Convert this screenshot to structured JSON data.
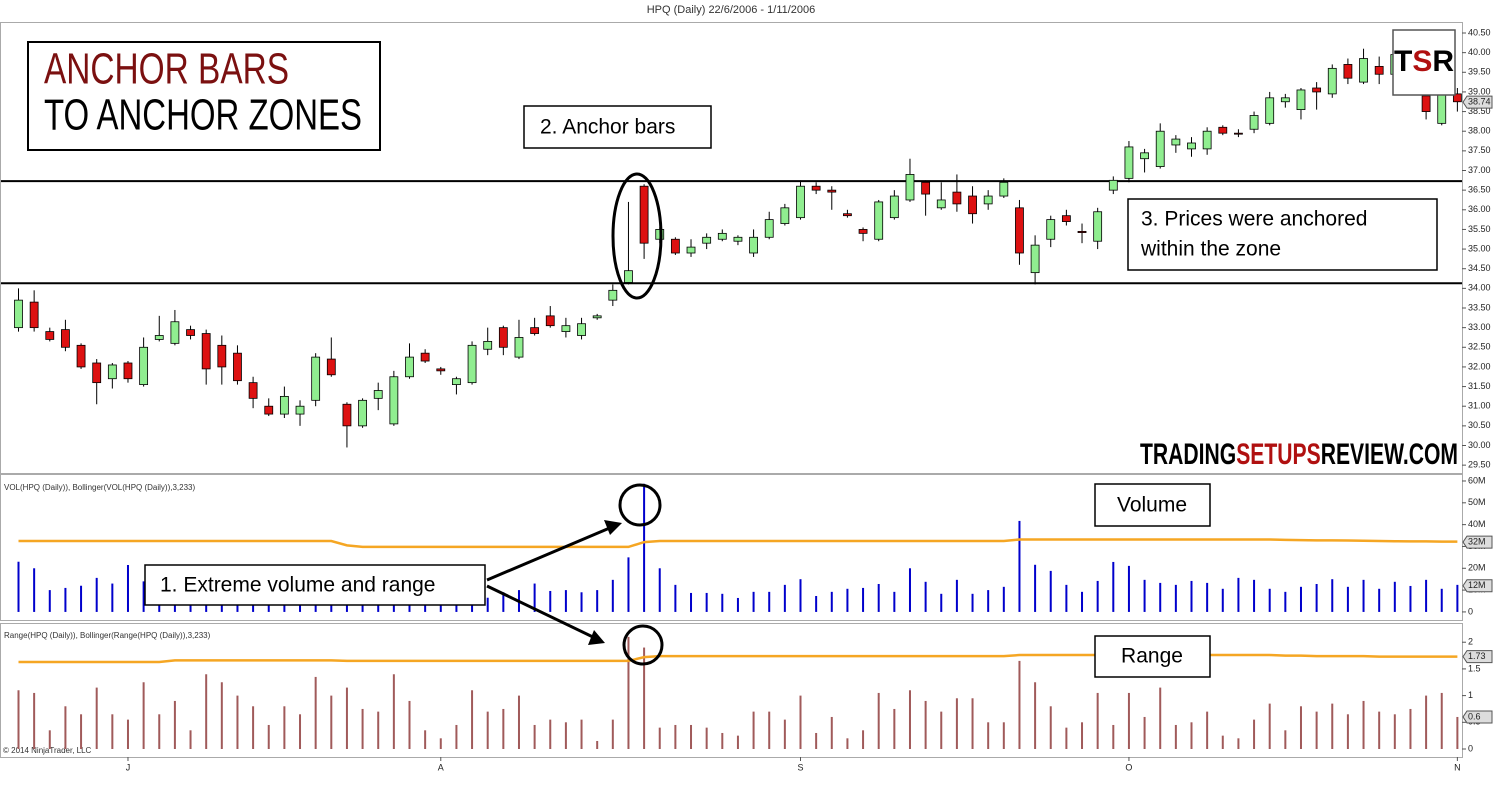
{
  "chart_data": [
    {
      "type": "candlestick",
      "title": "HPQ (Daily)  22/6/2006 - 1/11/2006",
      "categories": [
        null,
        null,
        null,
        null,
        null,
        null,
        null,
        "J",
        null,
        null,
        null,
        null,
        null,
        null,
        null,
        null,
        null,
        null,
        null,
        null,
        null,
        null,
        null,
        null,
        null,
        null,
        null,
        "A",
        null,
        null,
        null,
        null,
        null,
        null,
        null,
        null,
        null,
        null,
        null,
        null,
        null,
        null,
        null,
        null,
        null,
        null,
        null,
        null,
        null,
        null,
        "S",
        null,
        null,
        null,
        null,
        null,
        null,
        null,
        null,
        null,
        null,
        null,
        null,
        null,
        null,
        null,
        null,
        null,
        null,
        null,
        null,
        "O",
        null,
        null,
        null,
        null,
        null,
        null,
        null,
        null,
        null,
        null,
        null,
        null,
        null,
        null,
        null,
        null,
        null,
        null,
        null,
        null,
        "N"
      ],
      "open": [
        33.0,
        33.65,
        32.9,
        32.95,
        32.55,
        32.1,
        31.7,
        32.1,
        31.55,
        32.7,
        32.6,
        32.95,
        32.85,
        32.55,
        32.35,
        31.6,
        31.0,
        30.8,
        30.8,
        31.15,
        32.2,
        31.05,
        30.5,
        31.2,
        30.55,
        31.75,
        32.35,
        31.95,
        31.55,
        31.6,
        32.45,
        33.0,
        32.25,
        33.0,
        33.3,
        32.9,
        32.8,
        33.25,
        33.7,
        34.15,
        36.6,
        35.25,
        35.25,
        34.9,
        35.15,
        35.25,
        35.2,
        34.9,
        35.3,
        35.65,
        35.8,
        36.6,
        36.5,
        35.9,
        35.5,
        35.25,
        35.8,
        36.25,
        36.7,
        36.05,
        36.45,
        36.35,
        36.15,
        36.35,
        36.05,
        34.4,
        35.25,
        35.85,
        35.45,
        35.2,
        36.5,
        36.8,
        37.3,
        37.1,
        37.65,
        37.55,
        37.55,
        38.1,
        37.95,
        38.05,
        38.2,
        38.75,
        38.55,
        39.1,
        38.95,
        39.7,
        39.25,
        39.65,
        39.45,
        39.9,
        38.9,
        38.2,
        38.95
      ],
      "high": [
        34.0,
        33.95,
        33.0,
        33.2,
        32.6,
        32.2,
        32.1,
        32.15,
        32.75,
        33.3,
        33.45,
        33.05,
        32.95,
        32.8,
        32.55,
        31.75,
        31.2,
        31.5,
        31.15,
        32.35,
        32.75,
        31.1,
        31.2,
        31.6,
        31.9,
        32.6,
        32.45,
        32.0,
        31.75,
        32.65,
        33.0,
        33.05,
        33.2,
        33.25,
        33.55,
        33.25,
        33.25,
        33.35,
        34.1,
        36.2,
        36.65,
        35.55,
        35.3,
        35.25,
        35.4,
        35.5,
        35.35,
        35.5,
        35.95,
        36.15,
        36.75,
        36.7,
        36.6,
        36.0,
        35.55,
        36.25,
        36.5,
        37.3,
        36.75,
        36.7,
        36.9,
        36.6,
        36.5,
        36.8,
        36.25,
        35.35,
        35.85,
        36.0,
        35.65,
        36.05,
        36.85,
        37.75,
        37.55,
        38.2,
        37.9,
        37.85,
        38.1,
        38.15,
        38.05,
        38.5,
        39.0,
        38.95,
        39.1,
        39.25,
        39.7,
        39.85,
        40.1,
        39.9,
        40.0,
        40.05,
        39.3,
        39.2,
        39.1
      ],
      "low": [
        32.9,
        32.9,
        32.65,
        32.4,
        31.95,
        31.05,
        31.45,
        31.6,
        31.5,
        32.65,
        32.55,
        32.7,
        31.55,
        31.55,
        31.55,
        30.95,
        30.75,
        30.7,
        30.5,
        31.0,
        31.75,
        29.95,
        30.45,
        30.9,
        30.5,
        31.7,
        32.1,
        31.8,
        31.3,
        31.55,
        32.3,
        32.3,
        32.2,
        32.8,
        33.0,
        32.75,
        32.7,
        33.2,
        33.55,
        34.1,
        34.75,
        35.15,
        34.85,
        34.8,
        35.0,
        35.2,
        35.1,
        34.8,
        35.25,
        35.6,
        35.75,
        36.4,
        36.0,
        35.8,
        35.2,
        35.2,
        35.75,
        36.2,
        35.85,
        36.0,
        35.95,
        35.65,
        36.0,
        36.3,
        34.6,
        34.1,
        35.05,
        35.6,
        35.15,
        35.0,
        36.4,
        36.7,
        36.95,
        37.05,
        37.45,
        37.35,
        37.4,
        37.9,
        37.85,
        37.95,
        38.15,
        38.6,
        38.3,
        38.55,
        38.85,
        39.2,
        39.2,
        39.2,
        39.35,
        39.3,
        38.3,
        38.15,
        38.5
      ],
      "close": [
        33.7,
        33.0,
        32.7,
        32.5,
        32.0,
        31.6,
        32.05,
        31.7,
        32.5,
        32.8,
        33.15,
        32.8,
        31.95,
        32.0,
        31.65,
        31.2,
        30.8,
        31.25,
        31.0,
        32.25,
        31.8,
        30.5,
        31.15,
        31.4,
        31.75,
        32.25,
        32.15,
        31.9,
        31.7,
        32.55,
        32.65,
        32.5,
        32.75,
        32.85,
        33.05,
        33.05,
        33.1,
        33.3,
        33.95,
        34.45,
        35.15,
        35.5,
        34.9,
        35.05,
        35.3,
        35.4,
        35.3,
        35.3,
        35.75,
        36.05,
        36.6,
        36.5,
        36.45,
        35.85,
        35.4,
        36.2,
        36.35,
        36.9,
        36.4,
        36.25,
        36.15,
        35.9,
        36.35,
        36.7,
        34.9,
        35.1,
        35.75,
        35.7,
        35.42,
        35.95,
        36.75,
        37.6,
        37.45,
        38.0,
        37.8,
        37.7,
        38.0,
        37.95,
        37.93,
        38.4,
        38.85,
        38.85,
        39.05,
        39.0,
        39.6,
        39.35,
        39.85,
        39.45,
        39.95,
        39.5,
        38.5,
        38.95,
        38.75
      ],
      "up_color": "#90ee90",
      "down_color": "#dd1111",
      "hlines": [
        36.73,
        34.13
      ],
      "last_value": 38.74,
      "ylim": [
        29.3,
        40.78
      ],
      "yticks": [
        {
          "value": 29.5,
          "label": "29.50"
        },
        {
          "value": 30,
          "label": "30.00"
        },
        {
          "value": 30.5,
          "label": "30.50"
        },
        {
          "value": 31,
          "label": "31.00"
        },
        {
          "value": 31.5,
          "label": "31.50"
        },
        {
          "value": 32,
          "label": "32.00"
        },
        {
          "value": 32.5,
          "label": "32.50"
        },
        {
          "value": 33,
          "label": "33.00"
        },
        {
          "value": 33.5,
          "label": "33.50"
        },
        {
          "value": 34,
          "label": "34.00"
        },
        {
          "value": 34.5,
          "label": "34.50"
        },
        {
          "value": 35,
          "label": "35.00"
        },
        {
          "value": 35.5,
          "label": "35.50"
        },
        {
          "value": 36,
          "label": "36.00"
        },
        {
          "value": 36.5,
          "label": "36.50"
        },
        {
          "value": 37,
          "label": "37.00"
        },
        {
          "value": 37.5,
          "label": "37.50"
        },
        {
          "value": 38,
          "label": "38.00"
        },
        {
          "value": 38.5,
          "label": "38.50"
        },
        {
          "value": 39,
          "label": "39.00"
        },
        {
          "value": 39.5,
          "label": "39.50"
        },
        {
          "value": 40,
          "label": "40.00"
        },
        {
          "value": 40.5,
          "label": "40.50"
        }
      ]
    },
    {
      "type": "bar",
      "title": "VOL(HPQ (Daily)), Bollinger(VOL(HPQ (Daily)),3,233)",
      "series": [
        {
          "type": "bar",
          "color": "#0000cc",
          "values": [
            23000000,
            20000000,
            10000000,
            11000000,
            12000000,
            15600000,
            13000000,
            21500000,
            14000000,
            12000000,
            16000000,
            11000000,
            18000000,
            15000000,
            13000000,
            17000000,
            12000000,
            14000000,
            11000000,
            19000000,
            13000000,
            16000000,
            12000000,
            11000000,
            15000000,
            12000000,
            10000000,
            13000000,
            9000000,
            12000000,
            6500000,
            9000000,
            10000000,
            13000000,
            9600000,
            10000000,
            9000000,
            10000000,
            14700000,
            25000000,
            58700000,
            20000000,
            12400000,
            8700000,
            8700000,
            8300000,
            6400000,
            9200000,
            9200000,
            12400000,
            15000000,
            7300000,
            9200000,
            10600000,
            11000000,
            12800000,
            9200000,
            20000000,
            13800000,
            8300000,
            14700000,
            8300000,
            10000000,
            11500000,
            41700000,
            21600000,
            18800000,
            12400000,
            9200000,
            14200000,
            22900000,
            21100000,
            14700000,
            13300000,
            12400000,
            14200000,
            13300000,
            10600000,
            15600000,
            14700000,
            10600000,
            9200000,
            11500000,
            12800000,
            15000000,
            11500000,
            14700000,
            10600000,
            13800000,
            11900000,
            14700000,
            10600000,
            12400000
          ]
        },
        {
          "type": "line",
          "color": "#f5a623",
          "values": [
            32500000,
            32500000,
            32500000,
            32500000,
            32500000,
            32500000,
            32500000,
            32500000,
            32500000,
            32500000,
            32500000,
            32500000,
            32500000,
            32500000,
            32500000,
            32500000,
            32500000,
            32500000,
            32500000,
            32500000,
            32500000,
            30500000,
            29800000,
            29800000,
            29800000,
            29800000,
            29800000,
            29800000,
            29800000,
            29800000,
            29800000,
            29800000,
            29800000,
            29800000,
            29800000,
            29800000,
            29800000,
            29800000,
            29800000,
            29800000,
            32000000,
            32500000,
            32500000,
            32500000,
            32500000,
            32500000,
            32500000,
            32500000,
            32500000,
            32500000,
            32500000,
            32500000,
            32500000,
            32500000,
            32500000,
            32500000,
            32500000,
            32500000,
            32500000,
            32500000,
            32500000,
            32500000,
            32500000,
            32500000,
            33200000,
            33200000,
            33200000,
            33200000,
            33200000,
            33200000,
            33200000,
            33200000,
            33200000,
            33200000,
            33200000,
            33200000,
            33200000,
            33200000,
            33200000,
            33200000,
            33200000,
            33000000,
            32900000,
            32800000,
            32800000,
            32700000,
            32600000,
            32500000,
            32400000,
            32300000,
            32300000,
            32200000,
            32200000
          ]
        }
      ],
      "last_labels": [
        {
          "value": 32000000,
          "label": "32M"
        },
        {
          "value": 12000000,
          "label": "12M"
        }
      ],
      "ylim": [
        -3700000,
        63200000
      ],
      "yticks": [
        0,
        {
          "value": 10000000,
          "label": "10M"
        },
        {
          "value": 20000000,
          "label": "20M"
        },
        {
          "value": 30000000,
          "label": "30M"
        },
        {
          "value": 40000000,
          "label": "40M"
        },
        {
          "value": 50000000,
          "label": "50M"
        },
        {
          "value": 60000000,
          "label": "60M"
        }
      ]
    },
    {
      "type": "bar",
      "title": "Range(HPQ (Daily)), Bollinger(Range(HPQ (Daily)),3,233)",
      "series": [
        {
          "type": "bar",
          "color": "#a05a5a",
          "values": [
            1.1,
            1.05,
            0.35,
            0.8,
            0.65,
            1.15,
            0.65,
            0.55,
            1.25,
            0.65,
            0.9,
            0.35,
            1.4,
            1.25,
            1.0,
            0.8,
            0.45,
            0.8,
            0.65,
            1.35,
            1.0,
            1.15,
            0.75,
            0.7,
            1.4,
            0.9,
            0.35,
            0.2,
            0.45,
            1.1,
            0.7,
            0.75,
            1.0,
            0.45,
            0.55,
            0.5,
            0.55,
            0.15,
            0.55,
            2.1,
            1.9,
            0.4,
            0.45,
            0.45,
            0.4,
            0.3,
            0.25,
            0.7,
            0.7,
            0.55,
            1.0,
            0.3,
            0.6,
            0.2,
            0.35,
            1.05,
            0.75,
            1.1,
            0.9,
            0.7,
            0.95,
            0.95,
            0.5,
            0.5,
            1.65,
            1.25,
            0.8,
            0.4,
            0.5,
            1.05,
            0.45,
            1.05,
            0.6,
            1.15,
            0.45,
            0.5,
            0.7,
            0.25,
            0.2,
            0.55,
            0.85,
            0.35,
            0.8,
            0.7,
            0.85,
            0.65,
            0.9,
            0.7,
            0.65,
            0.75,
            1.0,
            1.05,
            0.6
          ]
        },
        {
          "type": "line",
          "color": "#f5a623",
          "values": [
            1.63,
            1.63,
            1.63,
            1.63,
            1.63,
            1.63,
            1.63,
            1.63,
            1.63,
            1.63,
            1.66,
            1.66,
            1.66,
            1.66,
            1.66,
            1.66,
            1.66,
            1.66,
            1.66,
            1.66,
            1.66,
            1.65,
            1.65,
            1.65,
            1.65,
            1.65,
            1.65,
            1.65,
            1.65,
            1.65,
            1.65,
            1.65,
            1.65,
            1.65,
            1.65,
            1.65,
            1.65,
            1.65,
            1.65,
            1.65,
            1.72,
            1.74,
            1.74,
            1.74,
            1.74,
            1.74,
            1.74,
            1.74,
            1.74,
            1.74,
            1.74,
            1.74,
            1.74,
            1.74,
            1.74,
            1.74,
            1.74,
            1.74,
            1.74,
            1.74,
            1.74,
            1.74,
            1.74,
            1.74,
            1.76,
            1.76,
            1.76,
            1.76,
            1.76,
            1.76,
            1.76,
            1.76,
            1.76,
            1.76,
            1.76,
            1.76,
            1.76,
            1.76,
            1.76,
            1.76,
            1.76,
            1.75,
            1.75,
            1.74,
            1.74,
            1.74,
            1.74,
            1.73,
            1.73,
            1.73,
            1.73,
            1.73,
            1.73
          ]
        }
      ],
      "last_labels": [
        1.73,
        0.6
      ],
      "ylim": [
        -0.15,
        2.36
      ],
      "yticks": [
        0,
        0.5,
        1,
        1.5,
        2
      ]
    }
  ],
  "annotations": {
    "title_lines": [
      "ANCHOR BARS",
      "TO ANCHOR ZONES"
    ],
    "anchor_bars": "2. Anchor bars",
    "zone": [
      "3. Prices were anchored",
      "within the zone"
    ],
    "extreme": "1. Extreme volume and range",
    "volume": "Volume",
    "range": "Range",
    "logo": [
      "T",
      "S",
      "R"
    ],
    "watermark": [
      "TRADING",
      "SETUPS",
      "REVIEW.COM"
    ],
    "copyright": "© 2014 NinjaTrader, LLC"
  }
}
